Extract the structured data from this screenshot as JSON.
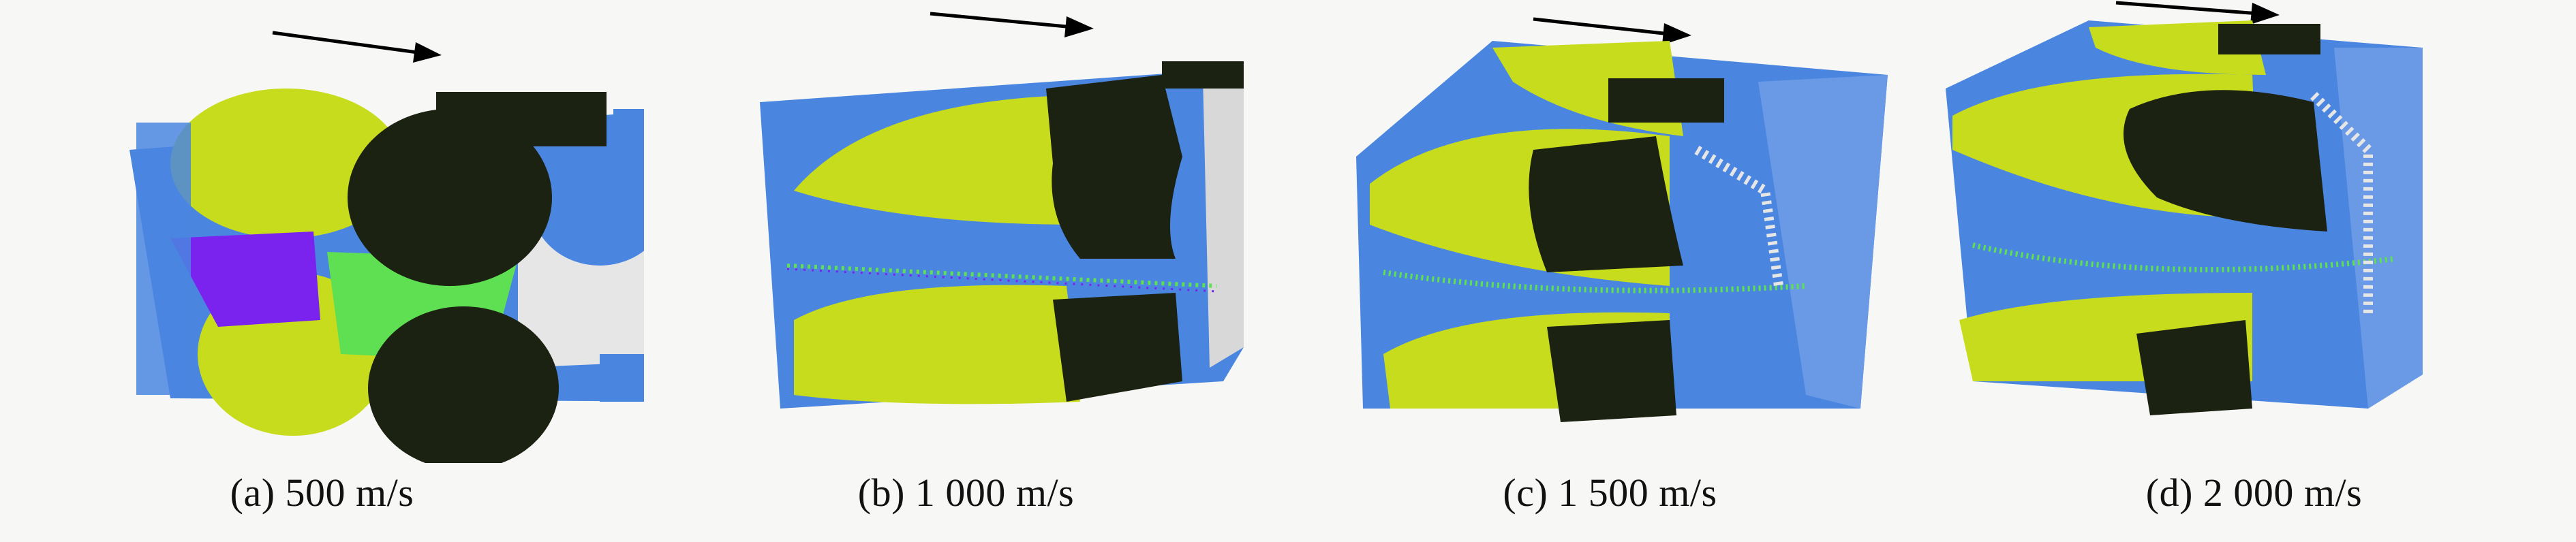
{
  "panels": [
    {
      "caption": "(a) 500 m/s"
    },
    {
      "caption": "(b) 1 000 m/s"
    },
    {
      "caption": "(c) 1 500 m/s"
    },
    {
      "caption": "(d) 2 000 m/s"
    }
  ],
  "colors": {
    "blue": "#4a86e0",
    "yellow_green": "#c8dc1e",
    "dark": "#1c2212",
    "purple": "#7a22ee",
    "green": "#5ee052",
    "white": "#e6e6e6",
    "arrow": "#000000"
  },
  "arrow_icon": "arrow-right-icon"
}
